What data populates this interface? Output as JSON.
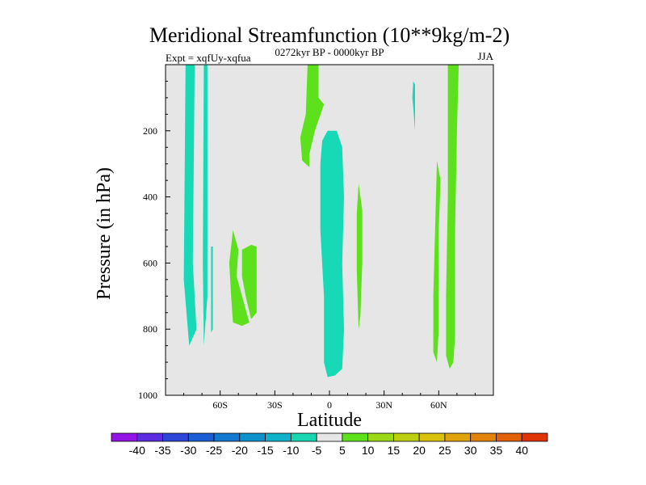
{
  "chart_data": {
    "type": "contour",
    "title": "Meridional Streamfunction (10**9kg/m-2)",
    "left_label": "Expt = xqfUy-xqfua",
    "center_label": "0272kyr BP - 0000kyr BP",
    "right_label": "JJA",
    "xlabel": "Latitude",
    "ylabel": "Pressure (in hPa)",
    "xlim": [
      -90,
      90
    ],
    "ylim": [
      0,
      1000
    ],
    "y_inverted": true,
    "x_ticks": [
      {
        "value": -60,
        "label": "60S"
      },
      {
        "value": -30,
        "label": "30S"
      },
      {
        "value": 0,
        "label": "0"
      },
      {
        "value": 30,
        "label": "30N"
      },
      {
        "value": 60,
        "label": "60N"
      }
    ],
    "y_ticks": [
      200,
      400,
      600,
      800,
      1000
    ],
    "background_color": "#e6e6e6",
    "regions": [
      {
        "level": "-5 to -10",
        "color": "#17d9b5",
        "polygon": [
          [
            -79,
            0
          ],
          [
            -74,
            0
          ],
          [
            -75,
            600
          ],
          [
            -73,
            800
          ],
          [
            -77,
            850
          ],
          [
            -80,
            650
          ]
        ]
      },
      {
        "level": "-5 to -10",
        "color": "#17d9b5",
        "polygon": [
          [
            -69,
            0
          ],
          [
            -67,
            0
          ],
          [
            -67,
            700
          ],
          [
            -69,
            850
          ],
          [
            -69.5,
            600
          ]
        ]
      },
      {
        "level": "-5 to -10",
        "color": "#17d9b5",
        "polygon": [
          [
            -65,
            550
          ],
          [
            -64,
            550
          ],
          [
            -64,
            800
          ],
          [
            -65,
            810
          ]
        ]
      },
      {
        "level": "-5 to -10",
        "color": "#17d9b5",
        "polygon": [
          [
            -4,
            230
          ],
          [
            -1,
            200
          ],
          [
            4,
            200
          ],
          [
            7,
            250
          ],
          [
            8,
            400
          ],
          [
            7,
            600
          ],
          [
            8,
            800
          ],
          [
            7,
            920
          ],
          [
            3,
            940
          ],
          [
            -1,
            945
          ],
          [
            -3,
            900
          ],
          [
            -3,
            700
          ],
          [
            -5,
            500
          ],
          [
            -5,
            300
          ]
        ]
      },
      {
        "level": "-5 to -10",
        "color": "#17d9b5",
        "polygon": [
          [
            46,
            50
          ],
          [
            47,
            60
          ],
          [
            47,
            200
          ],
          [
            46,
            130
          ],
          [
            45.5,
            100
          ]
        ]
      },
      {
        "level": "5 to 10",
        "color": "#5ee11d",
        "polygon": [
          [
            -12,
            0
          ],
          [
            -6,
            0
          ],
          [
            -6,
            100
          ],
          [
            -3,
            120
          ],
          [
            -8,
            200
          ],
          [
            -11,
            270
          ],
          [
            -11,
            310
          ],
          [
            -15,
            290
          ],
          [
            -16,
            220
          ],
          [
            -13,
            150
          ]
        ]
      },
      {
        "level": "5 to 10",
        "color": "#5ee11d",
        "polygon": [
          [
            -53,
            500
          ],
          [
            -50,
            560
          ],
          [
            -51,
            640
          ],
          [
            -48,
            700
          ],
          [
            -44,
            780
          ],
          [
            -48,
            790
          ],
          [
            -53,
            780
          ],
          [
            -54,
            700
          ],
          [
            -55,
            600
          ]
        ]
      },
      {
        "level": "5 to 10",
        "color": "#5ee11d",
        "polygon": [
          [
            -48,
            560
          ],
          [
            -43,
            545
          ],
          [
            -40,
            550
          ],
          [
            -40,
            750
          ],
          [
            -43,
            770
          ],
          [
            -46,
            700
          ],
          [
            -48,
            640
          ]
        ]
      },
      {
        "level": "5 to 10",
        "color": "#5ee11d",
        "polygon": [
          [
            16,
            360
          ],
          [
            18,
            440
          ],
          [
            18,
            600
          ],
          [
            17,
            760
          ],
          [
            16,
            800
          ],
          [
            15,
            620
          ],
          [
            15,
            450
          ]
        ]
      },
      {
        "level": "5 to 10",
        "color": "#5ee11d",
        "polygon": [
          [
            59,
            290
          ],
          [
            61,
            350
          ],
          [
            60,
            500
          ],
          [
            60,
            650
          ],
          [
            60,
            800
          ],
          [
            59,
            900
          ],
          [
            57,
            870
          ],
          [
            57,
            700
          ],
          [
            58,
            500
          ]
        ]
      },
      {
        "level": "5 to 10",
        "color": "#5ee11d",
        "polygon": [
          [
            65,
            0
          ],
          [
            71,
            0
          ],
          [
            70,
            200
          ],
          [
            69,
            500
          ],
          [
            69,
            820
          ],
          [
            68,
            900
          ],
          [
            66,
            920
          ],
          [
            64,
            880
          ],
          [
            64,
            700
          ],
          [
            65,
            400
          ]
        ]
      }
    ],
    "colorbar": {
      "levels": [
        "-40",
        "-35",
        "-30",
        "-25",
        "-20",
        "-15",
        "-10",
        "-5",
        "5",
        "10",
        "15",
        "20",
        "25",
        "30",
        "35",
        "40"
      ],
      "colors": [
        "#9215e6",
        "#5c2de0",
        "#2e46d8",
        "#1b5ed4",
        "#1378d0",
        "#0f92cc",
        "#10b1cb",
        "#18d6b2",
        "#e6e6e6",
        "#5ee11d",
        "#9bd817",
        "#bccf10",
        "#d9c20c",
        "#e1a30b",
        "#e2830b",
        "#e1600a",
        "#df3506"
      ]
    }
  }
}
